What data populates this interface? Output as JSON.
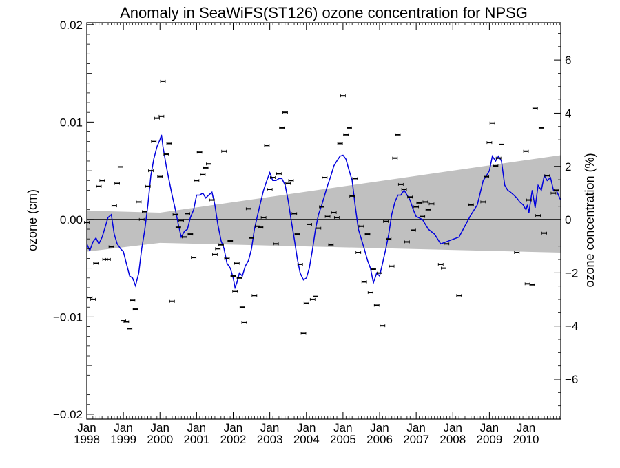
{
  "chart_data": {
    "type": "line",
    "title": "Anomaly in SeaWiFS(ST126) ozone concentration for NPSG",
    "ylabel": "ozone (cm)",
    "y2label": "ozone concentration (%)",
    "xlabel": "",
    "xlim": [
      1998.0,
      2010.95
    ],
    "ylim": [
      -0.0205,
      0.0202
    ],
    "y2lim": [
      -7.5,
      7.4
    ],
    "y_ticks": [
      {
        "value": -0.02,
        "label": "−0.02"
      },
      {
        "value": -0.01,
        "label": "−0.01"
      },
      {
        "value": 0.0,
        "label": "0.00"
      },
      {
        "value": 0.01,
        "label": "0.01"
      },
      {
        "value": 0.02,
        "label": "0.02"
      }
    ],
    "y2_ticks": [
      {
        "value": -6,
        "label": "−6"
      },
      {
        "value": -4,
        "label": "−4"
      },
      {
        "value": -2,
        "label": "−2"
      },
      {
        "value": 0,
        "label": "0"
      },
      {
        "value": 2,
        "label": "2"
      },
      {
        "value": 4,
        "label": "4"
      },
      {
        "value": 6,
        "label": "6"
      }
    ],
    "x_ticks": [
      {
        "value": 1998.0,
        "line1": "Jan",
        "line2": "1998"
      },
      {
        "value": 1999.0,
        "line1": "Jan",
        "line2": "1999"
      },
      {
        "value": 2000.0,
        "line1": "Jan",
        "line2": "2000"
      },
      {
        "value": 2001.0,
        "line1": "Jan",
        "line2": "2001"
      },
      {
        "value": 2002.0,
        "line1": "Jan",
        "line2": "2002"
      },
      {
        "value": 2003.0,
        "line1": "Jan",
        "line2": "2003"
      },
      {
        "value": 2004.0,
        "line1": "Jan",
        "line2": "2004"
      },
      {
        "value": 2005.0,
        "line1": "Jan",
        "line2": "2005"
      },
      {
        "value": 2006.0,
        "line1": "Jan",
        "line2": "2006"
      },
      {
        "value": 2007.0,
        "line1": "Jan",
        "line2": "2007"
      },
      {
        "value": 2008.0,
        "line1": "Jan",
        "line2": "2008"
      },
      {
        "value": 2009.0,
        "line1": "Jan",
        "line2": "2009"
      },
      {
        "value": 2010.0,
        "line1": "Jan",
        "line2": "2010"
      }
    ],
    "grid": false,
    "zero_line": true,
    "colors": {
      "line": "#0000dd",
      "band": "#c0c0c0",
      "marker": "#000000",
      "axis": "#000000"
    },
    "confidence_band": {
      "upper": [
        [
          1998.0,
          0.0009
        ],
        [
          2000.0,
          0.0007
        ],
        [
          2010.95,
          0.0066
        ]
      ],
      "lower": [
        [
          1998.0,
          -0.0033
        ],
        [
          2000.0,
          -0.0024
        ],
        [
          2010.95,
          -0.0034
        ]
      ]
    },
    "series": [
      {
        "type": "line",
        "values": [
          [
            1998.0,
            -0.0025
          ],
          [
            1998.08,
            -0.0032
          ],
          [
            1998.17,
            -0.0023
          ],
          [
            1998.25,
            -0.0019
          ],
          [
            1998.33,
            -0.0025
          ],
          [
            1998.42,
            -0.0018
          ],
          [
            1998.5,
            -0.0008
          ],
          [
            1998.58,
            0.0002
          ],
          [
            1998.67,
            0.0005
          ],
          [
            1998.75,
            -0.0015
          ],
          [
            1998.83,
            -0.0025
          ],
          [
            1998.92,
            -0.003
          ],
          [
            1999.0,
            -0.0033
          ],
          [
            1999.08,
            -0.0045
          ],
          [
            1999.17,
            -0.0058
          ],
          [
            1999.25,
            -0.006
          ],
          [
            1999.33,
            -0.0068
          ],
          [
            1999.42,
            -0.0055
          ],
          [
            1999.5,
            -0.003
          ],
          [
            1999.58,
            -0.0012
          ],
          [
            1999.67,
            0.0015
          ],
          [
            1999.75,
            0.0045
          ],
          [
            1999.83,
            0.0062
          ],
          [
            1999.92,
            0.0075
          ],
          [
            2000.0,
            0.0082
          ],
          [
            2000.04,
            0.0087
          ],
          [
            2000.08,
            0.0075
          ],
          [
            2000.17,
            0.0055
          ],
          [
            2000.25,
            0.004
          ],
          [
            2000.33,
            0.0025
          ],
          [
            2000.42,
            0.001
          ],
          [
            2000.5,
            -0.0005
          ],
          [
            2000.58,
            -0.0018
          ],
          [
            2000.67,
            -0.0012
          ],
          [
            2000.75,
            -0.001
          ],
          [
            2000.83,
            0.0002
          ],
          [
            2000.92,
            0.001
          ],
          [
            2001.0,
            0.0025
          ],
          [
            2001.08,
            0.0025
          ],
          [
            2001.17,
            0.0027
          ],
          [
            2001.25,
            0.0022
          ],
          [
            2001.33,
            0.0025
          ],
          [
            2001.42,
            0.0028
          ],
          [
            2001.5,
            0.0015
          ],
          [
            2001.58,
            -0.0005
          ],
          [
            2001.67,
            -0.0022
          ],
          [
            2001.75,
            -0.003
          ],
          [
            2001.83,
            -0.0045
          ],
          [
            2001.92,
            -0.005
          ],
          [
            2002.0,
            -0.006
          ],
          [
            2002.05,
            -0.007
          ],
          [
            2002.1,
            -0.0065
          ],
          [
            2002.17,
            -0.0055
          ],
          [
            2002.25,
            -0.0058
          ],
          [
            2002.33,
            -0.0048
          ],
          [
            2002.42,
            -0.0042
          ],
          [
            2002.5,
            -0.003
          ],
          [
            2002.58,
            -0.001
          ],
          [
            2002.67,
            0.0005
          ],
          [
            2002.75,
            0.0018
          ],
          [
            2002.83,
            0.003
          ],
          [
            2002.92,
            0.004
          ],
          [
            2003.0,
            0.0048
          ],
          [
            2003.08,
            0.004
          ],
          [
            2003.17,
            0.004
          ],
          [
            2003.25,
            0.0042
          ],
          [
            2003.33,
            0.0042
          ],
          [
            2003.42,
            0.0035
          ],
          [
            2003.5,
            0.002
          ],
          [
            2003.58,
            0.0
          ],
          [
            2003.67,
            -0.002
          ],
          [
            2003.75,
            -0.004
          ],
          [
            2003.83,
            -0.0055
          ],
          [
            2003.92,
            -0.0062
          ],
          [
            2004.0,
            -0.006
          ],
          [
            2004.08,
            -0.005
          ],
          [
            2004.17,
            -0.003
          ],
          [
            2004.25,
            -0.001
          ],
          [
            2004.33,
            0.0005
          ],
          [
            2004.42,
            0.0015
          ],
          [
            2004.5,
            0.0025
          ],
          [
            2004.58,
            0.0035
          ],
          [
            2004.67,
            0.0045
          ],
          [
            2004.75,
            0.0055
          ],
          [
            2004.83,
            0.006
          ],
          [
            2004.92,
            0.0065
          ],
          [
            2005.0,
            0.0066
          ],
          [
            2005.08,
            0.0062
          ],
          [
            2005.17,
            0.005
          ],
          [
            2005.25,
            0.004
          ],
          [
            2005.33,
            0.0015
          ],
          [
            2005.42,
            -0.001
          ],
          [
            2005.5,
            -0.002
          ],
          [
            2005.58,
            -0.003
          ],
          [
            2005.67,
            -0.0042
          ],
          [
            2005.75,
            -0.005
          ],
          [
            2005.83,
            -0.0065
          ],
          [
            2005.92,
            -0.0055
          ],
          [
            2006.0,
            -0.0058
          ],
          [
            2006.08,
            -0.0045
          ],
          [
            2006.17,
            -0.003
          ],
          [
            2006.25,
            -0.0015
          ],
          [
            2006.33,
            0.0005
          ],
          [
            2006.42,
            0.0018
          ],
          [
            2006.5,
            0.0025
          ],
          [
            2006.58,
            0.0025
          ],
          [
            2006.67,
            0.003
          ],
          [
            2006.75,
            0.0025
          ],
          [
            2006.83,
            0.002
          ],
          [
            2006.92,
            0.001
          ],
          [
            2007.0,
            0.0003
          ],
          [
            2007.17,
            0.0
          ],
          [
            2007.33,
            -0.001
          ],
          [
            2007.5,
            -0.0015
          ],
          [
            2007.67,
            -0.0025
          ],
          [
            2008.17,
            -0.0018
          ],
          [
            2008.5,
            0.0005
          ],
          [
            2008.67,
            0.0015
          ],
          [
            2008.83,
            0.004
          ],
          [
            2008.92,
            0.0045
          ],
          [
            2009.0,
            0.005
          ],
          [
            2009.08,
            0.0065
          ],
          [
            2009.17,
            0.006
          ],
          [
            2009.25,
            0.0065
          ],
          [
            2009.33,
            0.006
          ],
          [
            2009.42,
            0.0035
          ],
          [
            2009.5,
            0.003
          ],
          [
            2009.58,
            0.0028
          ],
          [
            2009.67,
            0.0025
          ],
          [
            2009.75,
            0.0022
          ],
          [
            2009.83,
            0.0018
          ],
          [
            2009.92,
            0.0015
          ],
          [
            2010.0,
            0.001
          ],
          [
            2010.04,
            0.0015
          ],
          [
            2010.08,
            0.0007
          ],
          [
            2010.13,
            0.002
          ],
          [
            2010.17,
            0.003
          ],
          [
            2010.25,
            0.0012
          ],
          [
            2010.33,
            0.0035
          ],
          [
            2010.42,
            0.003
          ],
          [
            2010.5,
            0.0045
          ],
          [
            2010.58,
            0.004
          ],
          [
            2010.67,
            0.0043
          ],
          [
            2010.75,
            0.003
          ],
          [
            2010.83,
            0.003
          ],
          [
            2010.92,
            0.0022
          ],
          [
            2010.95,
            0.002
          ]
        ]
      }
    ],
    "scatter_markers": [
      [
        1998.0,
        -0.0003
      ],
      [
        1998.08,
        -0.008
      ],
      [
        1998.17,
        -0.0082
      ],
      [
        1998.25,
        -0.0045
      ],
      [
        1998.33,
        0.0034
      ],
      [
        1998.42,
        0.004
      ],
      [
        1998.5,
        -0.0041
      ],
      [
        1998.58,
        -0.0041
      ],
      [
        1998.67,
        -0.0028
      ],
      [
        1998.75,
        0.0014
      ],
      [
        1998.83,
        0.0037
      ],
      [
        1998.92,
        0.0054
      ],
      [
        1999.0,
        -0.0104
      ],
      [
        1999.08,
        -0.0105
      ],
      [
        1999.17,
        -0.0112
      ],
      [
        1999.25,
        -0.0083
      ],
      [
        1999.33,
        -0.0092
      ],
      [
        1999.42,
        0.0018
      ],
      [
        1999.5,
        0.0
      ],
      [
        1999.58,
        0.0008
      ],
      [
        1999.67,
        0.0034
      ],
      [
        1999.75,
        0.005
      ],
      [
        1999.83,
        0.008
      ],
      [
        1999.92,
        0.0104
      ],
      [
        2000.0,
        0.0044
      ],
      [
        2000.04,
        0.0106
      ],
      [
        2000.08,
        0.0142
      ],
      [
        2000.17,
        0.0067
      ],
      [
        2000.25,
        0.0078
      ],
      [
        2000.33,
        -0.0084
      ],
      [
        2000.42,
        0.0005
      ],
      [
        2000.5,
        -0.0008
      ],
      [
        2000.58,
        -0.0001
      ],
      [
        2000.67,
        -0.0018
      ],
      [
        2000.75,
        0.0006
      ],
      [
        2000.83,
        -0.0015
      ],
      [
        2000.92,
        -0.0039
      ],
      [
        2001.0,
        0.004
      ],
      [
        2001.08,
        0.0069
      ],
      [
        2001.17,
        0.0046
      ],
      [
        2001.25,
        0.0053
      ],
      [
        2001.33,
        0.0057
      ],
      [
        2001.42,
        0.002
      ],
      [
        2001.5,
        -0.0036
      ],
      [
        2001.58,
        -0.003
      ],
      [
        2001.67,
        -0.0026
      ],
      [
        2001.75,
        0.007
      ],
      [
        2001.83,
        -0.004
      ],
      [
        2001.92,
        -0.0022
      ],
      [
        2002.0,
        -0.0058
      ],
      [
        2002.05,
        -0.0074
      ],
      [
        2002.1,
        -0.0045
      ],
      [
        2002.17,
        -0.006
      ],
      [
        2002.25,
        -0.009
      ],
      [
        2002.3,
        -0.0106
      ],
      [
        2002.42,
        0.0011
      ],
      [
        2002.5,
        -0.0019
      ],
      [
        2002.58,
        -0.0078
      ],
      [
        2002.67,
        -0.0007
      ],
      [
        2002.75,
        -0.0008
      ],
      [
        2002.83,
        0.0002
      ],
      [
        2002.92,
        0.0076
      ],
      [
        2003.0,
        0.0031
      ],
      [
        2003.08,
        0.0043
      ],
      [
        2003.17,
        -0.0025
      ],
      [
        2003.25,
        0.0047
      ],
      [
        2003.33,
        0.0094
      ],
      [
        2003.42,
        0.011
      ],
      [
        2003.5,
        0.0037
      ],
      [
        2003.58,
        0.004
      ],
      [
        2003.67,
        0.0006
      ],
      [
        2003.75,
        -0.0015
      ],
      [
        2003.83,
        -0.0046
      ],
      [
        2003.92,
        -0.0117
      ],
      [
        2004.0,
        -0.0086
      ],
      [
        2004.08,
        -0.0005
      ],
      [
        2004.17,
        -0.0082
      ],
      [
        2004.25,
        -0.0079
      ],
      [
        2004.33,
        -0.0009
      ],
      [
        2004.42,
        0.0013
      ],
      [
        2004.5,
        0.0043
      ],
      [
        2004.58,
        0.0003
      ],
      [
        2004.67,
        -0.0026
      ],
      [
        2004.75,
        0.0007
      ],
      [
        2004.83,
        0.0002
      ],
      [
        2004.92,
        0.0078
      ],
      [
        2005.0,
        0.0127
      ],
      [
        2005.08,
        0.0087
      ],
      [
        2005.17,
        0.0094
      ],
      [
        2005.25,
        0.0024
      ],
      [
        2005.33,
        0.0042
      ],
      [
        2005.42,
        -0.0034
      ],
      [
        2005.5,
        -0.0007
      ],
      [
        2005.58,
        -0.0064
      ],
      [
        2005.67,
        -0.0015
      ],
      [
        2005.75,
        -0.0075
      ],
      [
        2005.83,
        -0.0051
      ],
      [
        2005.92,
        -0.0088
      ],
      [
        2006.0,
        -0.0055
      ],
      [
        2006.08,
        -0.0109
      ],
      [
        2006.17,
        -0.0002
      ],
      [
        2006.25,
        -0.002
      ],
      [
        2006.33,
        -0.0048
      ],
      [
        2006.42,
        0.0063
      ],
      [
        2006.5,
        0.0087
      ],
      [
        2006.58,
        0.0036
      ],
      [
        2006.67,
        0.0031
      ],
      [
        2006.75,
        -0.0023
      ],
      [
        2006.83,
        0.0023
      ],
      [
        2006.92,
        -0.0011
      ],
      [
        2007.0,
        0.0013
      ],
      [
        2007.08,
        0.0017
      ],
      [
        2007.17,
        0.0003
      ],
      [
        2007.25,
        0.0018
      ],
      [
        2007.33,
        0.001
      ],
      [
        2007.42,
        0.0016
      ],
      [
        2007.67,
        -0.0046
      ],
      [
        2007.75,
        -0.005
      ],
      [
        2007.83,
        -0.0025
      ],
      [
        2008.17,
        -0.0078
      ],
      [
        2008.5,
        0.0015
      ],
      [
        2008.83,
        0.0018
      ],
      [
        2008.92,
        0.0044
      ],
      [
        2009.0,
        0.0079
      ],
      [
        2009.08,
        0.0099
      ],
      [
        2009.17,
        0.0055
      ],
      [
        2009.25,
        0.0063
      ],
      [
        2009.33,
        0.0077
      ],
      [
        2009.75,
        -0.0034
      ],
      [
        2010.0,
        0.007
      ],
      [
        2010.04,
        -0.0066
      ],
      [
        2010.08,
        0.002
      ],
      [
        2010.17,
        -0.0067
      ],
      [
        2010.25,
        0.0114
      ],
      [
        2010.33,
        0.0004
      ],
      [
        2010.42,
        0.0094
      ],
      [
        2010.5,
        -0.0014
      ],
      [
        2010.58,
        0.0045
      ],
      [
        2010.75,
        0.0027
      ],
      [
        2010.83,
        0.003
      ]
    ]
  }
}
